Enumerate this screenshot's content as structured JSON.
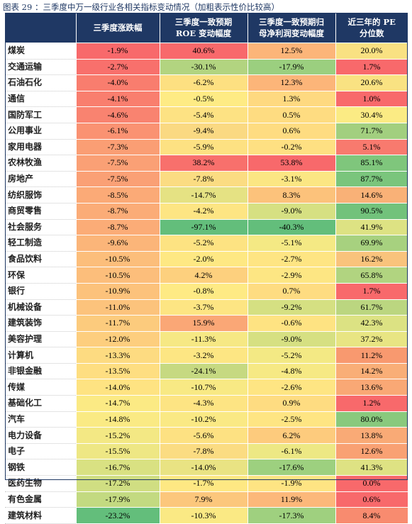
{
  "caption": "图表 29 ：三季度中万一级行业各相关指标变动情况（加粗表示性价比较高）",
  "headers": [
    "",
    "三季度涨跌幅",
    "三季度一致预期ROE变动幅度",
    "三季度一致预期归母净利润变动幅度",
    "近三年的PE分位数"
  ],
  "header_lines": [
    [
      ""
    ],
    [
      "三季度涨跌幅"
    ],
    [
      "三季度一致预期",
      "ROE 变动幅度"
    ],
    [
      "三季度一致预期归",
      "母净利润变动幅度"
    ],
    [
      "近三年的 PE",
      "分位数"
    ]
  ],
  "rows": [
    {
      "name": "煤炭",
      "values": [
        "-1.9%",
        "40.6%",
        "12.5%",
        "20.0%"
      ],
      "colors": [
        "#f8696b",
        "#f8696b",
        "#fcb579",
        "#f9e182"
      ]
    },
    {
      "name": "交通运输",
      "values": [
        "-2.7%",
        "-30.1%",
        "-17.9%",
        "1.7%"
      ],
      "colors": [
        "#f8706c",
        "#b2d480",
        "#9bcf7f",
        "#f8696b"
      ]
    },
    {
      "name": "石油石化",
      "values": [
        "-4.0%",
        "-6.2%",
        "12.3%",
        "20.6%"
      ],
      "colors": [
        "#f97d6e",
        "#fde081",
        "#fcb579",
        "#f9e282"
      ]
    },
    {
      "name": "通信",
      "values": [
        "-4.1%",
        "-0.5%",
        "1.3%",
        "1.0%"
      ],
      "colors": [
        "#f97e6e",
        "#feeb84",
        "#fed980",
        "#f8696b"
      ]
    },
    {
      "name": "国防军工",
      "values": [
        "-4.6%",
        "-5.4%",
        "0.5%",
        "30.4%"
      ],
      "colors": [
        "#f98370",
        "#fde283",
        "#fedc81",
        "#fbeb84"
      ]
    },
    {
      "name": "公用事业",
      "values": [
        "-6.1%",
        "-9.4%",
        "0.6%",
        "71.7%"
      ],
      "colors": [
        "#fa9272",
        "#fad982",
        "#fedc81",
        "#a2cf7f"
      ]
    },
    {
      "name": "家用电器",
      "values": [
        "-7.3%",
        "-5.9%",
        "-0.2%",
        "5.1%"
      ],
      "colors": [
        "#fa9e74",
        "#fde182",
        "#fee082",
        "#f87a6e"
      ]
    },
    {
      "name": "农林牧渔",
      "values": [
        "-7.5%",
        "38.2%",
        "53.8%",
        "85.1%"
      ],
      "colors": [
        "#faa075",
        "#f8706c",
        "#f8696b",
        "#7fc67c"
      ]
    },
    {
      "name": "房地产",
      "values": [
        "-7.5%",
        "-7.8%",
        "-3.1%",
        "87.7%"
      ],
      "colors": [
        "#faa075",
        "#fbdc82",
        "#fbe683",
        "#7ac57c"
      ]
    },
    {
      "name": "纺织服饰",
      "values": [
        "-8.5%",
        "-14.7%",
        "8.3%",
        "14.6%"
      ],
      "colors": [
        "#fbaa77",
        "#e5e283",
        "#fcc27b",
        "#f9b177"
      ]
    },
    {
      "name": "商贸零售",
      "values": [
        "-8.7%",
        "-4.2%",
        "-9.0%",
        "90.5%"
      ],
      "colors": [
        "#fbac77",
        "#fde583",
        "#d6e082",
        "#72c27b"
      ]
    },
    {
      "name": "社会服务",
      "values": [
        "-8.7%",
        "-97.1%",
        "-40.3%",
        "41.9%"
      ],
      "colors": [
        "#fbac77",
        "#63be7b",
        "#63be7b",
        "#dde283"
      ]
    },
    {
      "name": "轻工制造",
      "values": [
        "-9.6%",
        "-5.2%",
        "-5.1%",
        "69.9%"
      ],
      "colors": [
        "#fbb579",
        "#fde382",
        "#f4e984",
        "#a7d17f"
      ]
    },
    {
      "name": "食品饮料",
      "values": [
        "-10.5%",
        "-2.0%",
        "-2.7%",
        "16.2%"
      ],
      "colors": [
        "#fcbe7b",
        "#fee883",
        "#fee583",
        "#f9c37c"
      ]
    },
    {
      "name": "环保",
      "values": [
        "-10.5%",
        "4.2%",
        "-2.9%",
        "65.8%"
      ],
      "colors": [
        "#fcbe7b",
        "#fdd07e",
        "#fde683",
        "#b1d480"
      ]
    },
    {
      "name": "银行",
      "values": [
        "-10.9%",
        "-0.8%",
        "0.7%",
        "1.7%"
      ],
      "colors": [
        "#fcc27b",
        "#feea84",
        "#fedc81",
        "#f8696b"
      ]
    },
    {
      "name": "机械设备",
      "values": [
        "-11.0%",
        "-3.7%",
        "-9.2%",
        "61.7%"
      ],
      "colors": [
        "#fcc37c",
        "#fde583",
        "#d5e082",
        "#bbd680"
      ]
    },
    {
      "name": "建筑装饰",
      "values": [
        "-11.7%",
        "15.9%",
        "-0.6%",
        "42.3%"
      ],
      "colors": [
        "#fccb7d",
        "#faa776",
        "#fee382",
        "#dce283"
      ]
    },
    {
      "name": "美容护理",
      "values": [
        "-12.0%",
        "-11.3%",
        "-9.0%",
        "37.2%"
      ],
      "colors": [
        "#fdce7e",
        "#f6e884",
        "#d6e082",
        "#e8e583"
      ]
    },
    {
      "name": "计算机",
      "values": [
        "-13.3%",
        "-3.2%",
        "-5.2%",
        "11.2%"
      ],
      "colors": [
        "#fddb81",
        "#fde683",
        "#f3e984",
        "#f8996f"
      ]
    },
    {
      "name": "非银金融",
      "values": [
        "-13.5%",
        "-24.1%",
        "-4.8%",
        "14.2%"
      ],
      "colors": [
        "#fede81",
        "#c6d981",
        "#f6e984",
        "#f9ae77"
      ]
    },
    {
      "name": "传媒",
      "values": [
        "-14.0%",
        "-10.7%",
        "-2.6%",
        "13.6%"
      ],
      "colors": [
        "#fee382",
        "#f8e984",
        "#fee583",
        "#f9a875"
      ]
    },
    {
      "name": "基础化工",
      "values": [
        "-14.7%",
        "-4.3%",
        "0.9%",
        "1.2%"
      ],
      "colors": [
        "#fbea84",
        "#fde483",
        "#fedc81",
        "#f8696b"
      ]
    },
    {
      "name": "汽车",
      "values": [
        "-14.8%",
        "-10.2%",
        "-2.5%",
        "80.0%"
      ],
      "colors": [
        "#faea84",
        "#fae984",
        "#fee583",
        "#89c97d"
      ]
    },
    {
      "name": "电力设备",
      "values": [
        "-15.2%",
        "-5.6%",
        "6.2%",
        "13.8%"
      ],
      "colors": [
        "#f3e884",
        "#fde182",
        "#fdcb7d",
        "#f9aa76"
      ]
    },
    {
      "name": "电子",
      "values": [
        "-15.5%",
        "-7.8%",
        "-6.1%",
        "12.6%"
      ],
      "colors": [
        "#eee784",
        "#fbdc82",
        "#ede884",
        "#f9a173"
      ]
    },
    {
      "name": "钢铁",
      "values": [
        "-16.7%",
        "-14.0%",
        "-17.6%",
        "41.3%"
      ],
      "colors": [
        "#d9e182",
        "#e9e383",
        "#9dd07f",
        "#dee283"
      ]
    },
    {
      "name": "医药生物",
      "values": [
        "-17.2%",
        "-1.7%",
        "-1.9%",
        "0.0%"
      ],
      "colors": [
        "#d0de82",
        "#fee883",
        "#fee483",
        "#f8696b"
      ]
    },
    {
      "name": "有色金属",
      "values": [
        "-17.9%",
        "7.9%",
        "11.9%",
        "0.6%"
      ],
      "colors": [
        "#c3da81",
        "#fcc77c",
        "#fcb87a",
        "#f8696b"
      ]
    },
    {
      "name": "建筑材料",
      "values": [
        "-23.2%",
        "-10.3%",
        "-17.3%",
        "8.4%"
      ],
      "colors": [
        "#63be7b",
        "#fae984",
        "#9fd07f",
        "#f88b6f"
      ]
    }
  ]
}
